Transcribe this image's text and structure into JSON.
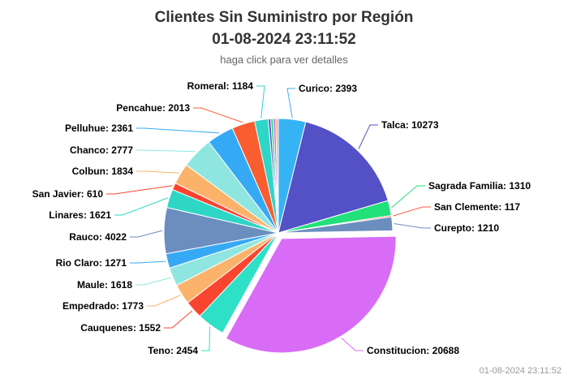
{
  "chart_data": {
    "type": "pie",
    "title": "Clientes Sin Suministro por Región",
    "title_date": "01-08-2024 23:11:52",
    "subtitle": "haga click para ver detalles",
    "credits": "01-08-2024 23:11:52",
    "slices": [
      {
        "name": "Curico",
        "value": 2393,
        "color": "#36b3f5",
        "label": "Curico: 2393"
      },
      {
        "name": "Talca",
        "value": 10273,
        "color": "#5450c6",
        "label": "Talca: 10273"
      },
      {
        "name": "Sagrada Familia",
        "value": 1310,
        "color": "#22e07a",
        "label": "Sagrada Familia: 1310"
      },
      {
        "name": "San Clemente",
        "value": 117,
        "color": "#f95d3f",
        "label": "San Clemente: 117"
      },
      {
        "name": "Curepto",
        "value": 1210,
        "color": "#6b8ebf",
        "label": "Curepto: 1210"
      },
      {
        "name": "Constitucion",
        "value": 20688,
        "color": "#d96cf7",
        "label": "Constitucion: 20688"
      },
      {
        "name": "Teno",
        "value": 2454,
        "color": "#2ee0c6",
        "label": "Teno: 2454"
      },
      {
        "name": "Cauquenes",
        "value": 1552,
        "color": "#f94530",
        "label": "Cauquenes: 1552"
      },
      {
        "name": "Empedrado",
        "value": 1773,
        "color": "#fbb36b",
        "label": "Empedrado: 1773"
      },
      {
        "name": "Maule",
        "value": 1618,
        "color": "#8fe6e0",
        "label": "Maule: 1618"
      },
      {
        "name": "Rio Claro",
        "value": 1271,
        "color": "#36a9f5",
        "label": "Rio Claro: 1271"
      },
      {
        "name": "Rauco",
        "value": 4022,
        "color": "#6b8ebf",
        "label": "Rauco: 4022"
      },
      {
        "name": "Linares",
        "value": 1621,
        "color": "#2ed6c6",
        "label": "Linares: 1621"
      },
      {
        "name": "San Javier",
        "value": 610,
        "color": "#f94530",
        "label": "San Javier: 610"
      },
      {
        "name": "Colbun",
        "value": 1834,
        "color": "#fbb36b",
        "label": "Colbun: 1834"
      },
      {
        "name": "Chanco",
        "value": 2777,
        "color": "#8fe6e0",
        "label": "Chanco: 2777"
      },
      {
        "name": "Pelluhue",
        "value": 2361,
        "color": "#36a9f5",
        "label": "Pelluhue: 2361"
      },
      {
        "name": "Pencahue",
        "value": 2013,
        "color": "#f95d30",
        "label": "Pencahue: 2013"
      },
      {
        "name": "Romeral",
        "value": 1184,
        "color": "#2ed6c6",
        "label": "Romeral: 1184"
      }
    ],
    "unlabeled_slice_colors": [
      "#5450c6",
      "#22e07a",
      "#d96cf7",
      "#fbb36b"
    ]
  }
}
